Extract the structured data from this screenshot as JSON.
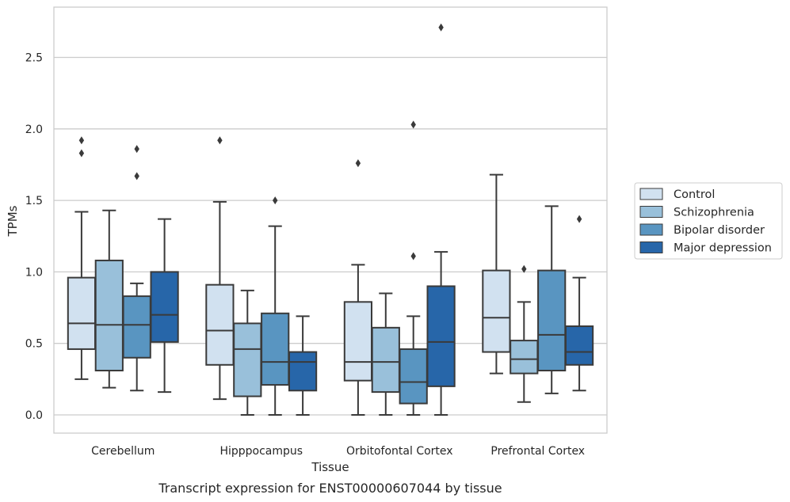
{
  "chart_data": {
    "type": "box",
    "xlabel": "Tissue",
    "ylabel": "TPMs",
    "caption": "Transcript expression for ENST00000607044 by tissue",
    "ylim": [
      -0.13,
      2.85
    ],
    "yticks": [
      "0.0",
      "0.5",
      "1.0",
      "1.5",
      "2.0",
      "2.5"
    ],
    "grid": "horizontal",
    "legend_position": "right",
    "categories": [
      "Cerebellum",
      "Hipppocampus",
      "Orbitofontal Cortex",
      "Prefrontal Cortex"
    ],
    "series": [
      {
        "name": "Control",
        "color": "#d1e1f0",
        "boxes": [
          {
            "whislo": 0.25,
            "q1": 0.46,
            "med": 0.64,
            "q3": 0.96,
            "whishi": 1.42,
            "fliers": [
              1.83,
              1.92
            ]
          },
          {
            "whislo": 0.11,
            "q1": 0.35,
            "med": 0.59,
            "q3": 0.91,
            "whishi": 1.49,
            "fliers": [
              1.92
            ]
          },
          {
            "whislo": 0.0,
            "q1": 0.24,
            "med": 0.37,
            "q3": 0.79,
            "whishi": 1.05,
            "fliers": [
              1.76
            ]
          },
          {
            "whislo": 0.29,
            "q1": 0.44,
            "med": 0.68,
            "q3": 1.01,
            "whishi": 1.68,
            "fliers": []
          }
        ]
      },
      {
        "name": "Schizophrenia",
        "color": "#99c0da",
        "boxes": [
          {
            "whislo": 0.19,
            "q1": 0.31,
            "med": 0.63,
            "q3": 1.08,
            "whishi": 1.43,
            "fliers": []
          },
          {
            "whislo": 0.0,
            "q1": 0.13,
            "med": 0.46,
            "q3": 0.64,
            "whishi": 0.87,
            "fliers": []
          },
          {
            "whislo": 0.0,
            "q1": 0.16,
            "med": 0.37,
            "q3": 0.61,
            "whishi": 0.85,
            "fliers": []
          },
          {
            "whislo": 0.09,
            "q1": 0.29,
            "med": 0.39,
            "q3": 0.52,
            "whishi": 0.79,
            "fliers": [
              1.02
            ]
          }
        ]
      },
      {
        "name": "Bipolar disorder",
        "color": "#5995c1",
        "boxes": [
          {
            "whislo": 0.17,
            "q1": 0.4,
            "med": 0.63,
            "q3": 0.83,
            "whishi": 0.92,
            "fliers": [
              1.67,
              1.86
            ]
          },
          {
            "whislo": 0.0,
            "q1": 0.21,
            "med": 0.37,
            "q3": 0.71,
            "whishi": 1.32,
            "fliers": [
              1.5
            ]
          },
          {
            "whislo": 0.0,
            "q1": 0.08,
            "med": 0.23,
            "q3": 0.46,
            "whishi": 0.69,
            "fliers": [
              1.11,
              2.03
            ]
          },
          {
            "whislo": 0.15,
            "q1": 0.31,
            "med": 0.56,
            "q3": 1.01,
            "whishi": 1.46,
            "fliers": []
          }
        ]
      },
      {
        "name": "Major depression",
        "color": "#2766a9",
        "boxes": [
          {
            "whislo": 0.16,
            "q1": 0.51,
            "med": 0.7,
            "q3": 1.0,
            "whishi": 1.37,
            "fliers": []
          },
          {
            "whislo": 0.0,
            "q1": 0.17,
            "med": 0.37,
            "q3": 0.44,
            "whishi": 0.69,
            "fliers": []
          },
          {
            "whislo": 0.0,
            "q1": 0.2,
            "med": 0.51,
            "q3": 0.9,
            "whishi": 1.14,
            "fliers": [
              2.71
            ]
          },
          {
            "whislo": 0.17,
            "q1": 0.35,
            "med": 0.44,
            "q3": 0.62,
            "whishi": 0.96,
            "fliers": [
              1.37
            ]
          }
        ]
      }
    ]
  }
}
